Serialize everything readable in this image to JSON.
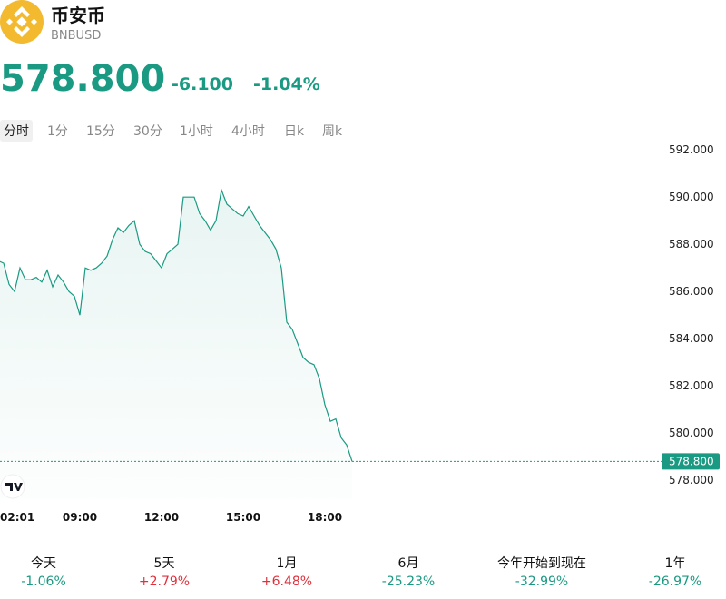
{
  "header": {
    "name": "币安币",
    "symbol": "BNBUSD",
    "price": "578.800",
    "change": "-6.100",
    "change_pct": "-1.04%"
  },
  "tabs": [
    "分时",
    "1分",
    "15分",
    "30分",
    "1小时",
    "4小时",
    "日k",
    "周k"
  ],
  "chart_data": {
    "type": "line",
    "color": "#1a9a82",
    "grid": false,
    "categories": [
      null,
      null,
      null,
      "02:01",
      null,
      null,
      null,
      null,
      null,
      null,
      null,
      null,
      null,
      null,
      null,
      "09:00",
      null,
      null,
      null,
      null,
      null,
      null,
      null,
      null,
      null,
      null,
      null,
      null,
      null,
      null,
      "12:00",
      null,
      null,
      null,
      null,
      null,
      null,
      null,
      null,
      null,
      null,
      null,
      null,
      null,
      null,
      "15:00",
      null,
      null,
      null,
      null,
      null,
      null,
      null,
      null,
      null,
      null,
      null,
      null,
      null,
      null,
      "18:00",
      null,
      null,
      null,
      null,
      null
    ],
    "values": [
      587.3,
      587.2,
      586.3,
      586.0,
      587.0,
      586.5,
      586.5,
      586.6,
      586.4,
      586.9,
      586.2,
      586.7,
      586.4,
      586.0,
      585.8,
      585.0,
      587.0,
      586.9,
      587.0,
      587.2,
      587.5,
      588.2,
      588.7,
      588.5,
      588.8,
      589.0,
      588.0,
      587.7,
      587.6,
      587.3,
      587.0,
      587.6,
      587.8,
      588.0,
      590.0,
      590.0,
      590.0,
      589.3,
      589.0,
      588.6,
      589.0,
      590.3,
      589.7,
      589.5,
      589.3,
      589.2,
      589.6,
      589.2,
      588.8,
      588.5,
      588.2,
      587.8,
      587.0,
      584.7,
      584.4,
      583.8,
      583.2,
      583.0,
      582.9,
      582.3,
      581.2,
      580.5,
      580.6,
      579.8,
      579.5,
      578.8
    ],
    "ylim": [
      577.2,
      592.2
    ],
    "yticks": [
      {
        "value": 578,
        "label": "578.000"
      },
      {
        "value": 580,
        "label": "580.000"
      },
      {
        "value": 582,
        "label": "582.000"
      },
      {
        "value": 584,
        "label": "584.000"
      },
      {
        "value": 586,
        "label": "586.000"
      },
      {
        "value": 588,
        "label": "588.000"
      },
      {
        "value": 590,
        "label": "590.000"
      },
      {
        "value": 592,
        "label": "592.000"
      }
    ],
    "last_price": {
      "value": 578.8,
      "label": "578.800"
    }
  },
  "periods": [
    {
      "label": "今天",
      "value": "-1.06%",
      "color": "#1a9a82"
    },
    {
      "label": "5天",
      "value": "+2.79%",
      "color": "#e0303b"
    },
    {
      "label": "1月",
      "value": "+6.48%",
      "color": "#e0303b"
    },
    {
      "label": "6月",
      "value": "-25.23%",
      "color": "#1a9a82"
    },
    {
      "label": "今年开始到现在",
      "value": "-32.99%",
      "color": "#1a9a82"
    },
    {
      "label": "1年",
      "value": "-26.97%",
      "color": "#1a9a82"
    }
  ]
}
